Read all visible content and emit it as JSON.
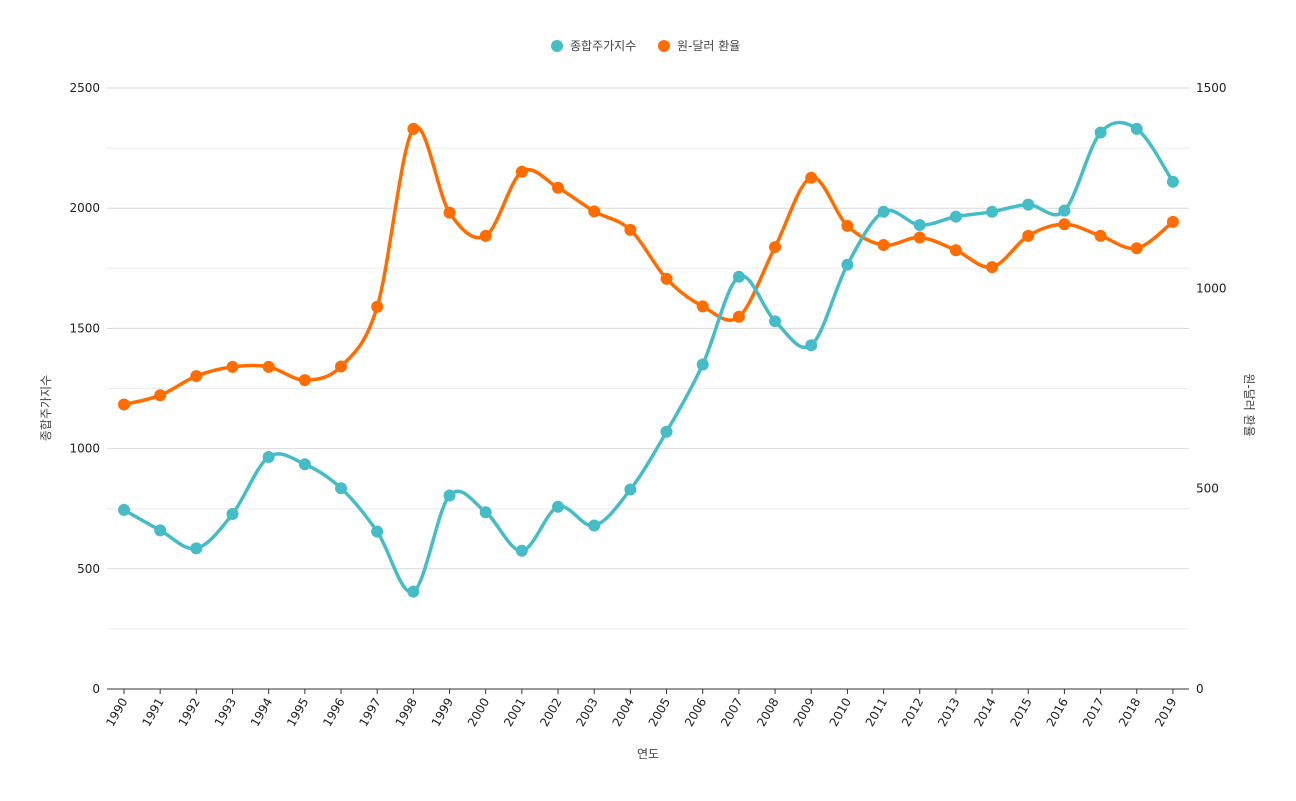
{
  "chart_data": {
    "type": "line",
    "legend_position": "top",
    "grid": true,
    "xlabel": "연도",
    "ylabel_left": "종합주가지수",
    "ylabel_right": "원-달러 환율",
    "ylim_left": [
      0,
      2500
    ],
    "ylim_right": [
      0,
      1500
    ],
    "yticks_left": [
      "0",
      "500",
      "1000",
      "1500",
      "2000",
      "2500"
    ],
    "yticks_right": [
      "0",
      "500",
      "1000",
      "1500"
    ],
    "categories": [
      "1990",
      "1991",
      "1992",
      "1993",
      "1994",
      "1995",
      "1996",
      "1997",
      "1998",
      "1999",
      "2000",
      "2001",
      "2002",
      "2003",
      "2004",
      "2005",
      "2006",
      "2007",
      "2008",
      "2009",
      "2010",
      "2011",
      "2012",
      "2013",
      "2014",
      "2015",
      "2016",
      "2017",
      "2018",
      "2019"
    ],
    "series": [
      {
        "name": "종합주가지수",
        "axis": "left",
        "color": "#46bdc6",
        "values": [
          745,
          660,
          585,
          728,
          965,
          935,
          835,
          655,
          405,
          805,
          735,
          575,
          758,
          680,
          830,
          1070,
          1350,
          1715,
          1530,
          1430,
          1765,
          1985,
          1930,
          1965,
          1985,
          2015,
          1990,
          2315,
          2330,
          2110
        ]
      },
      {
        "name": "원-달러 환율",
        "axis": "right",
        "color": "#ff6d01",
        "values": [
          710,
          733,
          781,
          804,
          804,
          771,
          805,
          954,
          1398,
          1189,
          1131,
          1291,
          1251,
          1192,
          1146,
          1024,
          955,
          929,
          1103,
          1276,
          1156,
          1108,
          1127,
          1095,
          1053,
          1131,
          1160,
          1131,
          1100,
          1166
        ]
      }
    ]
  }
}
